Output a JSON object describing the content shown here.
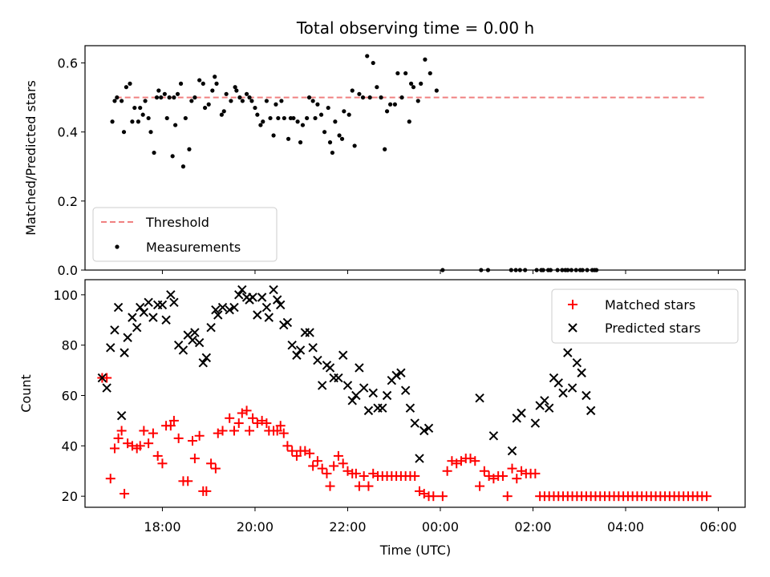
{
  "figure": {
    "title": "Total observing time = 0.00 h"
  },
  "chart_data": [
    {
      "type": "scatter",
      "title": "Total observing time = 0.00 h",
      "xlabel": "",
      "ylabel": "Matched/Predicted stars",
      "xlim": [
        16.33,
        30.58
      ],
      "ylim": [
        0.0,
        0.65
      ],
      "yticks": [
        0.0,
        0.2,
        0.4,
        0.6
      ],
      "ytick_labels": [
        "0.0",
        "0.2",
        "0.4",
        "0.6"
      ],
      "xticks": [
        18,
        20,
        22,
        24,
        26,
        28,
        30
      ],
      "xtick_labels": [
        "",
        "",
        "",
        "",
        "",
        "",
        ""
      ],
      "legend_position": "lower-left",
      "colors": {
        "threshold": "#f08080",
        "measurements": "#000000"
      },
      "threshold": {
        "name": "Threshold",
        "x": [
          17.0,
          29.75
        ],
        "y": 0.5
      },
      "series": [
        {
          "name": "Measurements",
          "x": [
            16.92,
            16.97,
            17.02,
            17.12,
            17.17,
            17.22,
            17.3,
            17.35,
            17.4,
            17.48,
            17.52,
            17.58,
            17.63,
            17.7,
            17.75,
            17.82,
            17.88,
            17.92,
            17.97,
            18.05,
            18.1,
            18.15,
            18.22,
            18.25,
            18.28,
            18.33,
            18.4,
            18.45,
            18.5,
            18.58,
            18.63,
            18.7,
            18.8,
            18.88,
            18.92,
            19.0,
            19.08,
            19.13,
            19.17,
            19.28,
            19.33,
            19.38,
            19.48,
            19.57,
            19.6,
            19.67,
            19.73,
            19.82,
            19.88,
            19.93,
            20.0,
            20.05,
            20.12,
            20.17,
            20.25,
            20.33,
            20.4,
            20.45,
            20.5,
            20.57,
            20.63,
            20.72,
            20.77,
            20.83,
            20.92,
            20.98,
            21.03,
            21.12,
            21.17,
            21.25,
            21.3,
            21.35,
            21.43,
            21.5,
            21.58,
            21.62,
            21.67,
            21.73,
            21.82,
            21.88,
            21.92,
            22.03,
            22.1,
            22.15,
            22.25,
            22.33,
            22.42,
            22.48,
            22.55,
            22.63,
            22.72,
            22.8,
            22.85,
            22.92,
            23.02,
            23.08,
            23.17,
            23.25,
            23.33,
            23.37,
            23.42,
            23.52,
            23.58,
            23.67,
            23.78,
            23.92,
            24.05,
            24.88,
            25.03,
            25.53,
            25.63,
            25.72,
            25.83,
            26.08,
            26.18,
            26.22,
            26.33,
            26.38,
            26.53,
            26.63,
            26.7,
            26.75,
            26.83,
            26.93,
            27.02,
            27.07,
            27.17,
            27.28,
            27.33,
            27.37
          ],
          "y": [
            0.43,
            0.49,
            0.5,
            0.49,
            0.4,
            0.53,
            0.54,
            0.43,
            0.47,
            0.43,
            0.47,
            0.45,
            0.49,
            0.44,
            0.4,
            0.34,
            0.5,
            0.52,
            0.5,
            0.51,
            0.44,
            0.5,
            0.33,
            0.5,
            0.42,
            0.51,
            0.54,
            0.3,
            0.44,
            0.35,
            0.49,
            0.5,
            0.55,
            0.54,
            0.47,
            0.48,
            0.52,
            0.56,
            0.54,
            0.45,
            0.46,
            0.51,
            0.49,
            0.53,
            0.52,
            0.5,
            0.49,
            0.51,
            0.5,
            0.49,
            0.47,
            0.45,
            0.42,
            0.43,
            0.49,
            0.44,
            0.39,
            0.48,
            0.44,
            0.49,
            0.44,
            0.38,
            0.44,
            0.44,
            0.43,
            0.37,
            0.42,
            0.44,
            0.5,
            0.49,
            0.44,
            0.48,
            0.45,
            0.4,
            0.47,
            0.37,
            0.34,
            0.43,
            0.39,
            0.38,
            0.46,
            0.45,
            0.52,
            0.36,
            0.51,
            0.5,
            0.62,
            0.5,
            0.6,
            0.53,
            0.5,
            0.35,
            0.46,
            0.48,
            0.48,
            0.57,
            0.5,
            0.57,
            0.43,
            0.54,
            0.53,
            0.49,
            0.54,
            0.61,
            0.57,
            0.52,
            0.0,
            0.0,
            0.0,
            0.0,
            0.0,
            0.0,
            0.0,
            0.0,
            0.0,
            0.0,
            0.0,
            0.0,
            0.0,
            0.0,
            0.0,
            0.0,
            0.0,
            0.0,
            0.0,
            0.0,
            0.0,
            0.0,
            0.0,
            0.0
          ]
        }
      ]
    },
    {
      "type": "scatter",
      "title": "",
      "xlabel": "Time (UTC)",
      "ylabel": "Count",
      "xlim": [
        16.33,
        30.58
      ],
      "ylim": [
        15.6,
        106.0
      ],
      "yticks": [
        20,
        40,
        60,
        80,
        100
      ],
      "ytick_labels": [
        "20",
        "40",
        "60",
        "80",
        "100"
      ],
      "xticks": [
        18,
        20,
        22,
        24,
        26,
        28,
        30
      ],
      "xtick_labels": [
        "18:00",
        "20:00",
        "22:00",
        "00:00",
        "02:00",
        "04:00",
        "06:00"
      ],
      "legend_position": "upper-right",
      "colors": {
        "matched": "#ff0000",
        "predicted": "#000000"
      },
      "series": [
        {
          "name": "Matched stars",
          "x": [
            16.7,
            16.8,
            16.88,
            16.97,
            17.05,
            17.12,
            17.18,
            17.25,
            17.35,
            17.45,
            17.52,
            17.6,
            17.7,
            17.8,
            17.9,
            18.0,
            18.08,
            18.18,
            18.25,
            18.35,
            18.45,
            18.55,
            18.65,
            18.7,
            18.8,
            18.88,
            18.95,
            19.05,
            19.15,
            19.2,
            19.3,
            19.45,
            19.55,
            19.65,
            19.72,
            19.82,
            19.88,
            19.95,
            20.05,
            20.15,
            20.25,
            20.3,
            20.4,
            20.48,
            20.55,
            20.62,
            20.7,
            20.8,
            20.9,
            20.98,
            21.08,
            21.18,
            21.25,
            21.35,
            21.45,
            21.55,
            21.62,
            21.7,
            21.8,
            21.9,
            22.0,
            22.1,
            22.18,
            22.25,
            22.35,
            22.45,
            22.55,
            22.65,
            22.75,
            22.85,
            22.95,
            23.05,
            23.15,
            23.25,
            23.35,
            23.45,
            23.55,
            23.65,
            23.75,
            23.85,
            24.05,
            24.15,
            24.25,
            24.35,
            24.45,
            24.55,
            24.65,
            24.75,
            24.85,
            24.95,
            25.05,
            25.15,
            25.25,
            25.35,
            25.45,
            25.55,
            25.65,
            25.75,
            25.85,
            25.95,
            26.05,
            26.15,
            26.25,
            26.35,
            26.45,
            26.55,
            26.65,
            26.75,
            26.85,
            26.95,
            27.05,
            27.15,
            27.25,
            27.35,
            27.45,
            27.55,
            27.65,
            27.75,
            27.85,
            27.95,
            28.05,
            28.15,
            28.25,
            28.35,
            28.45,
            28.55,
            28.65,
            28.75,
            28.85,
            28.95,
            29.05,
            29.15,
            29.25,
            29.35,
            29.45,
            29.55,
            29.65,
            29.75
          ],
          "y": [
            67,
            67,
            27,
            39,
            43,
            46,
            21,
            41,
            40,
            39,
            40,
            46,
            41,
            45,
            36,
            33,
            48,
            48,
            50,
            43,
            26,
            26,
            42,
            35,
            44,
            22,
            22,
            33,
            31,
            45,
            46,
            51,
            46,
            49,
            53,
            54,
            46,
            51,
            49,
            50,
            49,
            46,
            46,
            46,
            48,
            45,
            40,
            38,
            36,
            38,
            38,
            37,
            32,
            34,
            31,
            29,
            24,
            32,
            36,
            33,
            30,
            29,
            29,
            24,
            28,
            24,
            29,
            28,
            28,
            28,
            28,
            28,
            28,
            28,
            28,
            28,
            22,
            21,
            20,
            20,
            20,
            30,
            34,
            33,
            34,
            35,
            35,
            34,
            24,
            30,
            28,
            27,
            28,
            28,
            20,
            31,
            27,
            30,
            29,
            29,
            29,
            20,
            20,
            20,
            20,
            20,
            20,
            20,
            20,
            20,
            20,
            20,
            20,
            20,
            20,
            20,
            20,
            20,
            20,
            20,
            20,
            20,
            20,
            20,
            20,
            20,
            20,
            20,
            20,
            20,
            20,
            20,
            20,
            20,
            20,
            20,
            20,
            20
          ]
        },
        {
          "name": "Predicted stars",
          "x": [
            16.7,
            16.8,
            16.88,
            16.97,
            17.05,
            17.12,
            17.18,
            17.25,
            17.35,
            17.45,
            17.52,
            17.6,
            17.7,
            17.8,
            17.9,
            18.0,
            18.08,
            18.18,
            18.25,
            18.35,
            18.45,
            18.55,
            18.65,
            18.7,
            18.8,
            18.88,
            18.95,
            19.05,
            19.15,
            19.2,
            19.3,
            19.45,
            19.55,
            19.65,
            19.72,
            19.82,
            19.88,
            19.95,
            20.05,
            20.15,
            20.25,
            20.3,
            20.4,
            20.48,
            20.55,
            20.62,
            20.7,
            20.8,
            20.9,
            20.98,
            21.08,
            21.18,
            21.25,
            21.35,
            21.45,
            21.55,
            21.62,
            21.7,
            21.8,
            21.9,
            22.0,
            22.1,
            22.18,
            22.25,
            22.35,
            22.45,
            22.55,
            22.65,
            22.75,
            22.85,
            22.95,
            23.05,
            23.15,
            23.25,
            23.35,
            23.45,
            23.55,
            23.65,
            23.75,
            24.85,
            25.15,
            25.55,
            25.65,
            25.75,
            26.05,
            26.15,
            26.25,
            26.35,
            26.45,
            26.55,
            26.65,
            26.75,
            26.85,
            26.95,
            27.05,
            27.15,
            27.25
          ],
          "y": [
            67,
            63,
            79,
            86,
            95,
            52,
            77,
            83,
            91,
            87,
            95,
            93,
            97,
            91,
            96,
            96,
            90,
            100,
            97,
            80,
            78,
            84,
            82,
            85,
            81,
            73,
            75,
            87,
            94,
            92,
            95,
            94,
            95,
            100,
            102,
            99,
            98,
            99,
            92,
            99,
            95,
            91,
            102,
            98,
            96,
            88,
            89,
            80,
            76,
            78,
            85,
            85,
            79,
            74,
            64,
            72,
            71,
            67,
            67,
            76,
            64,
            58,
            60,
            71,
            63,
            54,
            61,
            55,
            55,
            60,
            66,
            68,
            69,
            62,
            55,
            49,
            35,
            46,
            47,
            59,
            44,
            38,
            51,
            53,
            49,
            56,
            58,
            55,
            67,
            65,
            61,
            77,
            63,
            73,
            69,
            60,
            54
          ]
        }
      ]
    }
  ]
}
